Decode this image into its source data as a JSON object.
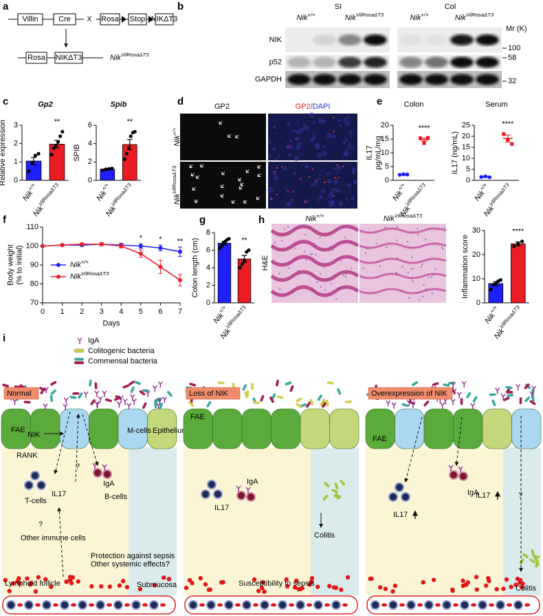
{
  "panel_labels": [
    "a",
    "b",
    "c",
    "d",
    "e",
    "f",
    "g",
    "h",
    "i"
  ],
  "panel_a": {
    "labels": [
      "Villin",
      "Cre",
      "X",
      "Rosa",
      "Stop",
      "NIKΔT3",
      "Rosa",
      "NIKΔT3"
    ],
    "genotype": "NikVilRosaΔT3"
  },
  "panel_b": {
    "tissues": [
      "SI",
      "Col"
    ],
    "genotypes": [
      "Nik+/+",
      "NikVilRosaΔT3"
    ],
    "proteins": [
      "NIK",
      "p52",
      "GAPDH"
    ],
    "mr_label": "Mr (K)",
    "markers": [
      "100",
      "58",
      "32"
    ]
  },
  "panel_d": {
    "columns": [
      "GP2",
      "GP2/DAPI"
    ],
    "rows": [
      "Nik+/+",
      "NikVilRosaΔT3"
    ]
  },
  "panel_h": {
    "stain": "H&E",
    "columns": [
      "Nik+/+",
      "NikVilRosaΔT3"
    ]
  },
  "chart_data": [
    {
      "type": "bar",
      "title": "Gp2",
      "ylabel": "Relative expression",
      "categories": [
        "Nik+/+",
        "NikVilRosaΔT3"
      ],
      "values": [
        1.05,
        1.97
      ],
      "errors": [
        0.2,
        0.2
      ],
      "points": [
        [
          0.5,
          0.95,
          1.35,
          1.45
        ],
        [
          1.4,
          1.75,
          1.9,
          2.1,
          2.4,
          2.65
        ]
      ],
      "colors": [
        "#1f1fff",
        "#ec1c24"
      ],
      "ylim": [
        0,
        3
      ],
      "yticks": [
        0,
        1,
        2,
        3
      ],
      "annotation": "**"
    },
    {
      "type": "bar",
      "title": "Spib",
      "ylabel": "SPIB",
      "categories": [
        "Nik+/+",
        "NikVilRosaΔT3"
      ],
      "values": [
        1.2,
        3.9
      ],
      "errors": [
        0.07,
        0.55
      ],
      "points": [
        [
          1.1,
          1.2,
          1.25,
          1.3
        ],
        [
          2.3,
          2.9,
          3.5,
          4.8,
          5.2,
          5.3
        ]
      ],
      "colors": [
        "#1f1fff",
        "#ec1c24"
      ],
      "ylim": [
        0,
        6
      ],
      "yticks": [
        0,
        2,
        4,
        6
      ],
      "annotation": "**"
    },
    {
      "type": "dot",
      "title": "Colon",
      "ylabel": [
        "IL17",
        "pg/mL/mg"
      ],
      "categories": [
        "Nik+/+",
        "NikVilRosaΔT3"
      ],
      "values": [
        2.1,
        14.7
      ],
      "errors": [
        0.15,
        0.6
      ],
      "points": [
        [
          2.0,
          2.2,
          2.1
        ],
        [
          15.3,
          13.5,
          15.4
        ]
      ],
      "colors": [
        "#1f1fff",
        "#ec1c24"
      ],
      "ylim": [
        0,
        20
      ],
      "yticks": [
        0,
        5,
        10,
        15,
        20
      ],
      "annotation": "****"
    },
    {
      "type": "dot",
      "title": "Serum",
      "ylabel": "IL17 (ng/mL)",
      "categories": [
        "Nik+/+",
        "NikVilRosaΔT3"
      ],
      "values": [
        1.6,
        19
      ],
      "errors": [
        0.15,
        1.6
      ],
      "points": [
        [
          1.5,
          1.8,
          1.4
        ],
        [
          21,
          18.5,
          16.5
        ]
      ],
      "colors": [
        "#1f1fff",
        "#ec1c24"
      ],
      "ylim": [
        0,
        25
      ],
      "yticks": [
        0,
        5,
        10,
        15,
        20,
        25
      ],
      "annotation": "****"
    },
    {
      "type": "line",
      "xlabel": "Days",
      "ylabel": [
        "Body weight",
        "(% to initial)"
      ],
      "x": [
        0,
        1,
        2,
        3,
        4,
        5,
        6,
        7
      ],
      "series": [
        {
          "name": "Nik+/+",
          "color": "#1f1fff",
          "values": [
            100,
            100.5,
            100.5,
            101,
            100.5,
            100,
            99,
            97
          ],
          "errors": [
            0,
            0.5,
            0.5,
            0.8,
            1,
            1.2,
            1.5,
            2.5
          ]
        },
        {
          "name": "NikVilRosaΔT3",
          "color": "#ec1c24",
          "values": [
            100,
            100.5,
            101,
            101,
            100,
            96,
            89,
            82
          ],
          "errors": [
            0,
            0.5,
            0.5,
            0.8,
            1,
            2,
            3.5,
            3
          ]
        }
      ],
      "xlim": [
        0,
        7
      ],
      "xticks": [
        0,
        1,
        2,
        3,
        4,
        5,
        6,
        7
      ],
      "ylim": [
        70,
        110
      ],
      "yticks": [
        70,
        80,
        90,
        100,
        110
      ],
      "legend": "center left",
      "annotations": [
        {
          "x": 5,
          "text": "*"
        },
        {
          "x": 6,
          "text": "*"
        },
        {
          "x": 7,
          "text": "**"
        }
      ]
    },
    {
      "type": "bar",
      "ylabel": "Colon length (cm)",
      "categories": [
        "Nik+/+",
        "NikVilRosaΔT3"
      ],
      "values": [
        6.8,
        5.0
      ],
      "errors": [
        0.2,
        0.4
      ],
      "points": [
        [
          6.2,
          6.5,
          6.8,
          7.0,
          7.2,
          7.3
        ],
        [
          4.0,
          4.4,
          4.8,
          5.8,
          6.0
        ]
      ],
      "colors": [
        "#1f1fff",
        "#ec1c24"
      ],
      "ylim": [
        0,
        8
      ],
      "yticks": [
        0,
        2,
        4,
        6,
        8
      ],
      "annotation": "**"
    },
    {
      "type": "bar",
      "ylabel": "Inflammation score",
      "categories": [
        "Nik+/+",
        "NikVilRosaΔT3"
      ],
      "values": [
        8.0,
        24.5
      ],
      "errors": [
        0.8,
        0.8
      ],
      "points": [
        [
          5.5,
          7.5,
          8,
          9,
          9.5
        ],
        [
          23.5,
          24.5,
          25.5
        ]
      ],
      "colors": [
        "#1f1fff",
        "#ec1c24"
      ],
      "ylim": [
        0,
        30
      ],
      "yticks": [
        0,
        10,
        20,
        30
      ],
      "annotation": "****"
    }
  ],
  "schematic": {
    "legend": [
      "IgA",
      "Colitogenic bacteria",
      "Commensal bacteria"
    ],
    "panels": [
      {
        "title": "Normal",
        "labels": [
          "FAE",
          "NIK",
          "RANK",
          "M-cells",
          "Epithelium",
          "T-cells",
          "IL17",
          "?",
          "?",
          "IgA",
          "B-cells",
          "Other immune cells",
          "Protection against sepsis",
          "Other systemic effects?",
          "Lymphoid follicle",
          "Submucosa"
        ]
      },
      {
        "title": "Loss of NIK",
        "labels": [
          "FAE",
          "IL17",
          "IgA",
          "Colitis",
          "Susceptibility to sepsis"
        ]
      },
      {
        "title": "Overexpression of NIK",
        "labels": [
          "FAE",
          "IgA",
          "IL17",
          "IL17",
          "?",
          "Colitis"
        ]
      }
    ]
  }
}
